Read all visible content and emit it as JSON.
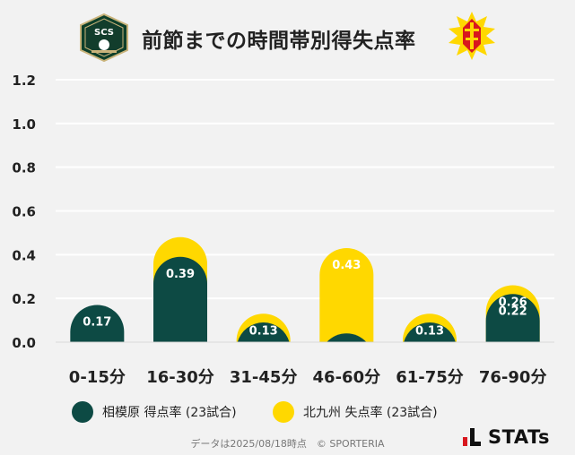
{
  "header": {
    "title": "前節までの時間帯別得失点率",
    "left_badge_text": "SCS"
  },
  "colors": {
    "team1": "#0d4a44",
    "team2": "#ffd800",
    "grid": "#ffffff",
    "text": "#222222"
  },
  "legend": {
    "team1_label": "相模原 得点率 (23試合)",
    "team2_label": "北九州 失点率 (23試合)"
  },
  "footer": {
    "note": "データは2025/08/18時点　© SPORTERIA",
    "logo_text": "STATs"
  },
  "chart_data": {
    "type": "bar",
    "categories": [
      "0-15分",
      "16-30分",
      "31-45分",
      "46-60分",
      "61-75分",
      "76-90分"
    ],
    "series": [
      {
        "name": "相模原 得点率 (23試合)",
        "values": [
          0.17,
          0.39,
          0.09,
          0.04,
          0.09,
          0.22
        ],
        "labels": [
          "0.17",
          "0.39",
          "",
          "",
          "",
          "0.22"
        ]
      },
      {
        "name": "北九州 失点率 (23試合)",
        "values": [
          0.0,
          0.48,
          0.13,
          0.43,
          0.13,
          0.26
        ],
        "labels": [
          "",
          "",
          "0.13",
          "0.43",
          "0.13",
          "0.26"
        ]
      }
    ],
    "ylim": [
      0,
      1.2
    ],
    "yticks": [
      "0.0",
      "0.2",
      "0.4",
      "0.6",
      "0.8",
      "1.0",
      "1.2"
    ],
    "grid": true,
    "legend_position": "bottom"
  }
}
